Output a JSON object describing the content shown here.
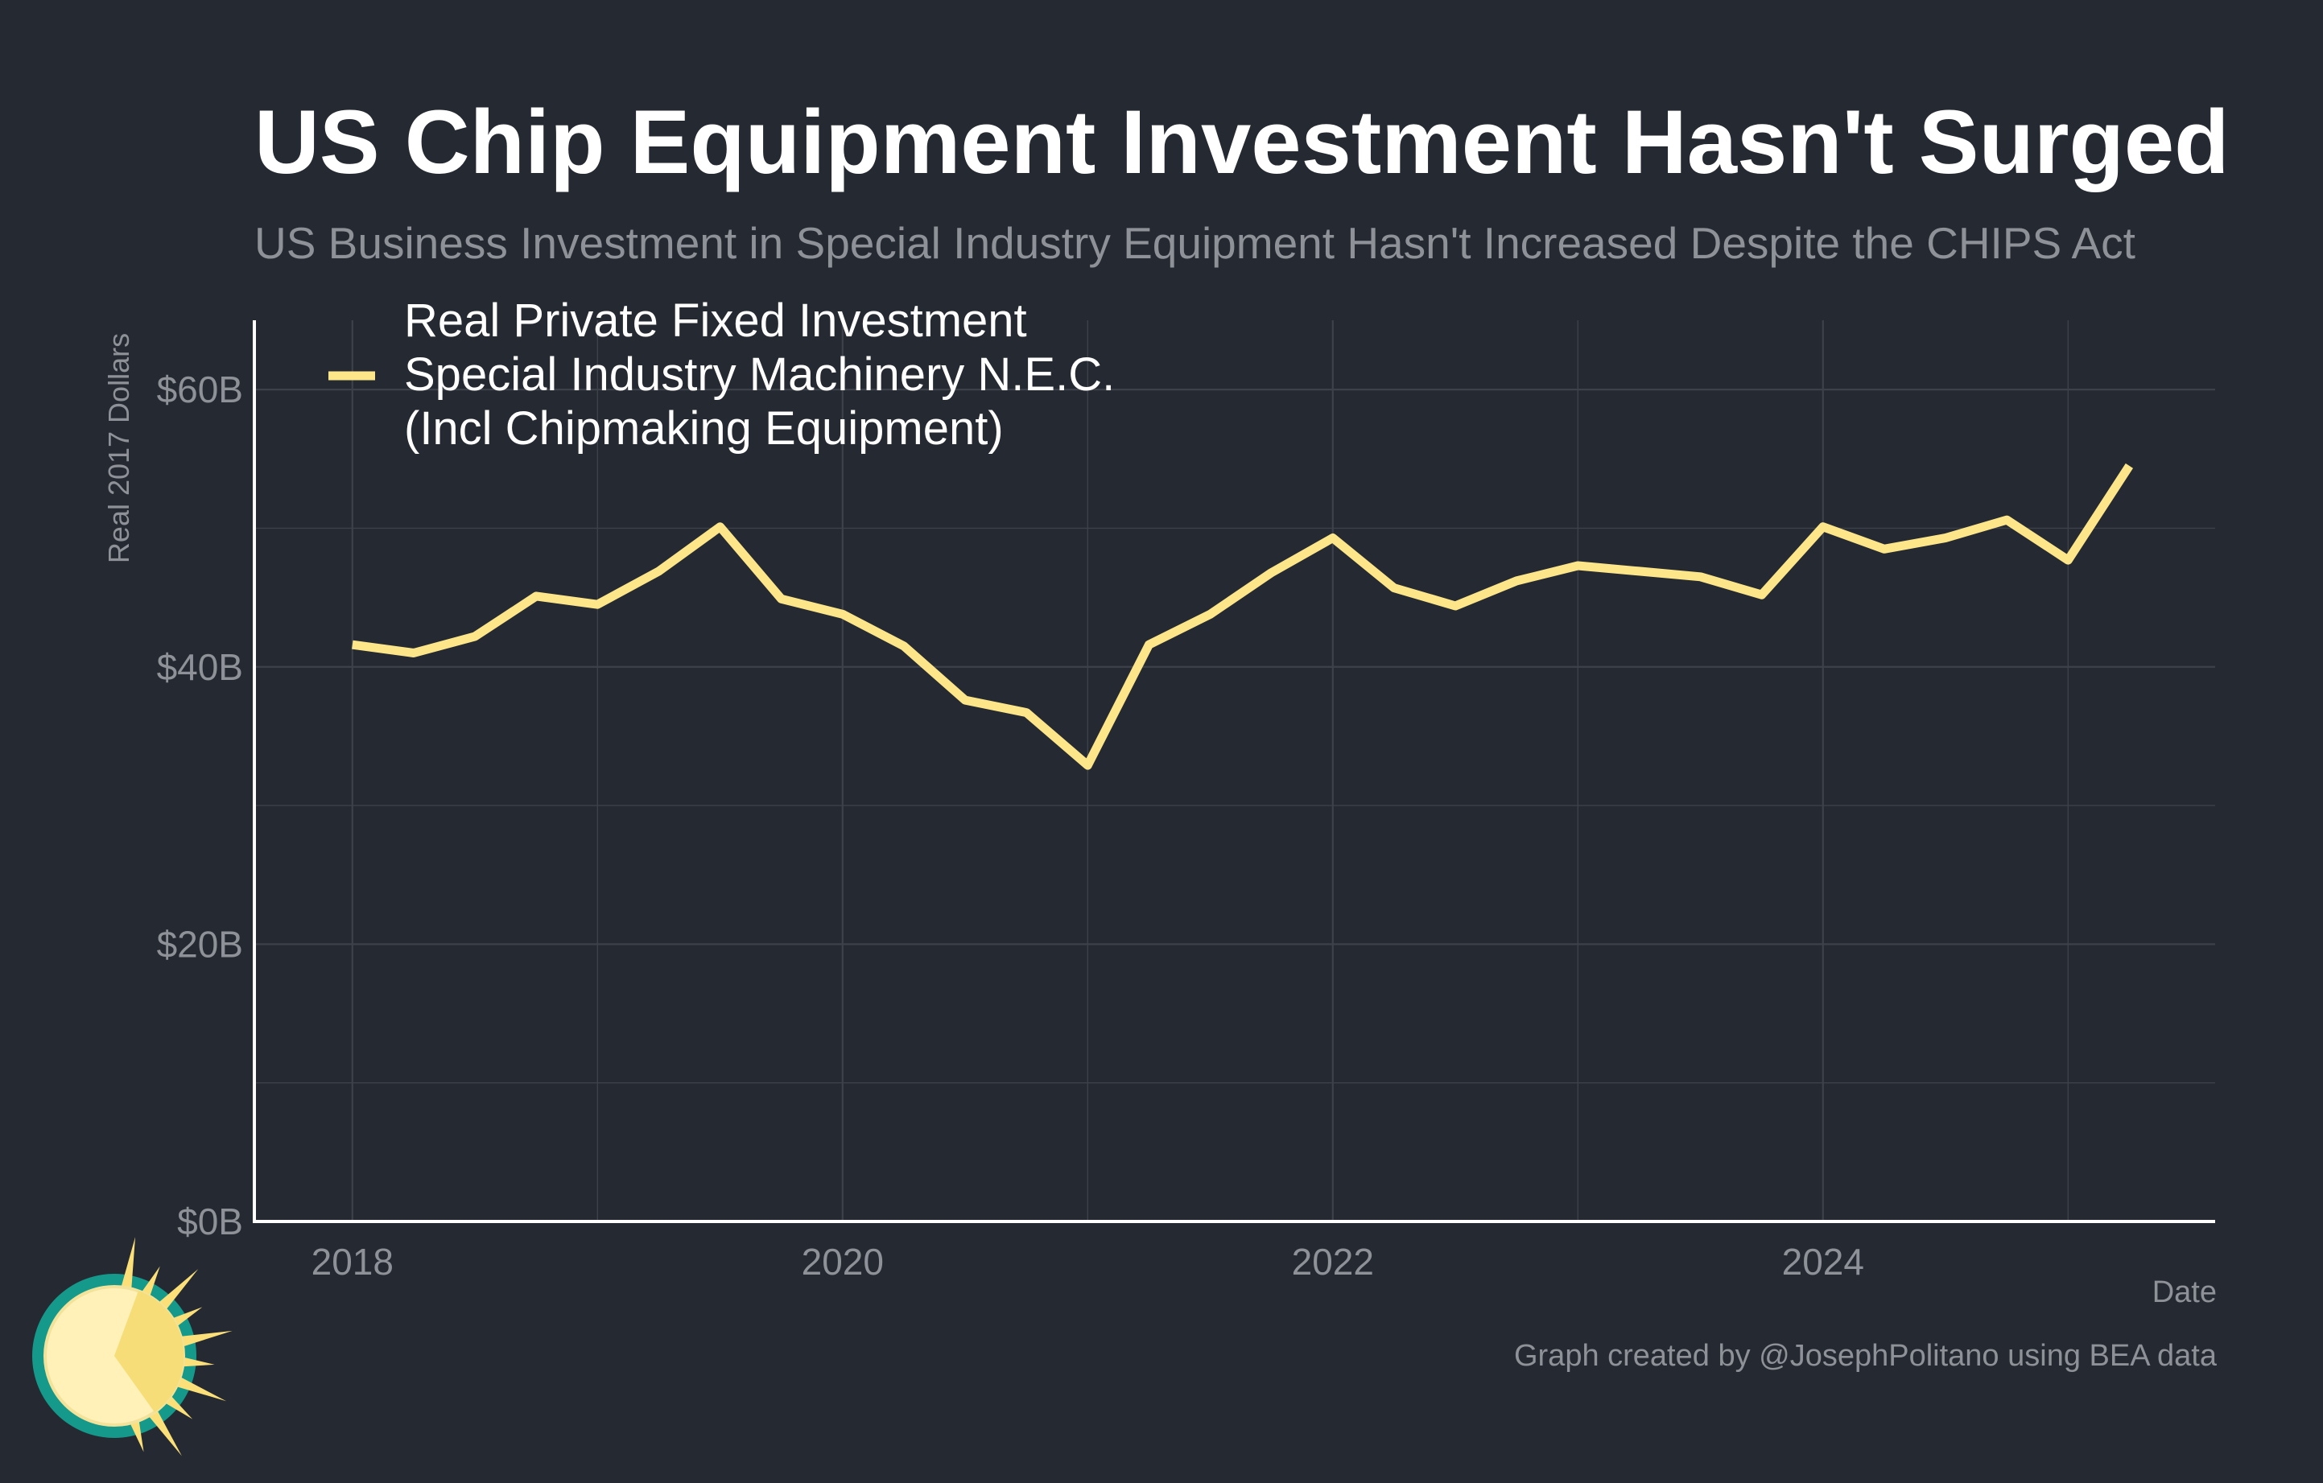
{
  "title": "US Chip Equipment Investment Hasn't Surged",
  "subtitle": "US Business Investment in Special Industry Equipment Hasn't Increased Despite the CHIPS Act",
  "credit": "Graph created by @JosephPolitano using BEA data",
  "colors": {
    "background": "#252931",
    "line": "#fde68a",
    "grid": "#3d414a",
    "axis": "#ffffff",
    "muted": "#8e9198"
  },
  "chart_data": {
    "type": "line",
    "ylabel": "Real 2017 Dollars",
    "xlabel": "Date",
    "ylim": [
      0,
      65
    ],
    "xlim": [
      2017.6,
      2025.6
    ],
    "x_ticks": [
      2018,
      2020,
      2022,
      2024
    ],
    "x_tick_labels": [
      "2018",
      "2020",
      "2022",
      "2024"
    ],
    "y_ticks": [
      0,
      20,
      40,
      60
    ],
    "y_tick_labels": [
      "$0B",
      "$20B",
      "$40B",
      "$60B"
    ],
    "grid": true,
    "legend": {
      "placement": "top-left",
      "lines": [
        "Real Private Fixed Investment",
        "Special Industry Machinery N.E.C.",
        "(Incl Chipmaking Equipment)"
      ]
    },
    "series": [
      {
        "name": "Real Private Fixed Investment Special Industry Machinery N.E.C. (Incl Chipmaking Equipment)",
        "color": "#fde68a",
        "x": [
          2018.0,
          2018.25,
          2018.5,
          2018.75,
          2019.0,
          2019.25,
          2019.5,
          2019.75,
          2020.0,
          2020.25,
          2020.5,
          2020.75,
          2021.0,
          2021.25,
          2021.5,
          2021.75,
          2022.0,
          2022.25,
          2022.5,
          2022.75,
          2023.0,
          2023.25,
          2023.5,
          2023.75,
          2024.0,
          2024.25,
          2024.5,
          2024.75,
          2025.0,
          2025.25
        ],
        "values": [
          41.6,
          41.0,
          42.2,
          45.1,
          44.5,
          46.9,
          50.1,
          44.9,
          43.8,
          41.5,
          37.6,
          36.7,
          32.9,
          41.6,
          43.8,
          46.8,
          49.3,
          45.7,
          44.4,
          46.2,
          47.3,
          46.9,
          46.5,
          45.2,
          50.1,
          48.5,
          49.3,
          50.6,
          47.7,
          54.5
        ]
      }
    ]
  }
}
